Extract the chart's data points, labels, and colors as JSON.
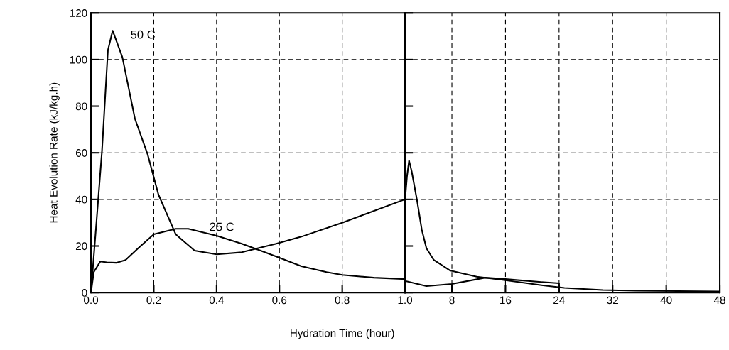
{
  "chart_data": [
    {
      "type": "line",
      "ylabel": "Heat Evolution Rate (kJ/kg.h)",
      "xlabel": "Hydration Time (hour)",
      "xlim": [
        0,
        1
      ],
      "xticks": [
        {
          "value": 0,
          "label": "0.0"
        },
        0.2,
        0.4,
        0.6,
        0.8,
        {
          "value": 1,
          "label": "1.0"
        }
      ],
      "ylim": [
        0,
        120
      ],
      "yticks": [
        0,
        20,
        40,
        60,
        80,
        100,
        120
      ],
      "grid": true,
      "line_style": "solid",
      "series": [
        {
          "name": "50 C",
          "color": "#000000",
          "x": [
            0,
            0.035,
            0.054,
            0.069,
            0.1,
            0.14,
            0.18,
            0.215,
            0.27,
            0.33,
            0.4,
            0.48,
            0.59,
            0.67,
            0.8,
            1.0
          ],
          "values": [
            0,
            60.6,
            104,
            112.4,
            101,
            74.6,
            59.5,
            42,
            25,
            18,
            16.4,
            17.3,
            21,
            24,
            30,
            40
          ]
        },
        {
          "name": "25 C",
          "color": "#000000",
          "x": [
            0,
            0.009,
            0.03,
            0.05,
            0.08,
            0.11,
            0.15,
            0.2,
            0.27,
            0.31,
            0.4,
            0.48,
            0.54,
            0.6,
            0.67,
            0.75,
            0.8,
            0.9,
            1.0
          ],
          "values": [
            0,
            8.8,
            13.4,
            13,
            12.8,
            14,
            19,
            25,
            27.4,
            27.4,
            24.4,
            21,
            18,
            15,
            11.3,
            8.8,
            7.6,
            6.4,
            5.8
          ]
        }
      ]
    },
    {
      "type": "line",
      "xlim": [
        1,
        48
      ],
      "xticks": [
        8,
        16,
        24,
        32,
        40,
        48
      ],
      "ylim": [
        0,
        120
      ],
      "yticks": [
        0,
        20,
        40,
        60,
        80,
        100,
        120
      ],
      "grid": true,
      "line_style": "solid",
      "tick_labels": "x",
      "series": [
        {
          "color": "#000000",
          "x": [
            1,
            1.3,
            1.6,
            2.0,
            2.8,
            3.5,
            4.2,
            5.3,
            7.7,
            11.7,
            16,
            21,
            24.8,
            30.5,
            35.5,
            48
          ],
          "values": [
            39.5,
            50,
            56.6,
            52,
            39.5,
            27,
            19,
            14,
            9.5,
            6.8,
            5.3,
            3.3,
            2,
            1.1,
            0.8,
            0.5
          ]
        },
        {
          "color": "#000000",
          "x": [
            1,
            4.2,
            8,
            13,
            16,
            21,
            24,
            24
          ],
          "values": [
            5,
            2.8,
            3.7,
            6.4,
            5.8,
            4.6,
            4.0,
            0
          ]
        }
      ]
    }
  ]
}
